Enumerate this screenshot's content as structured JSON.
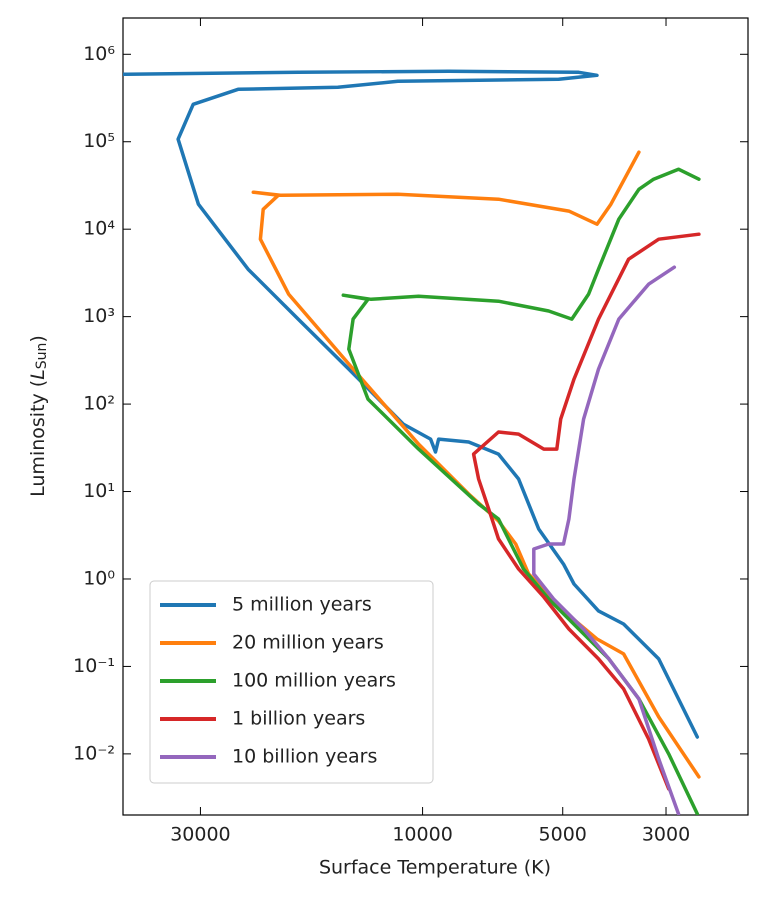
{
  "chart_data": {
    "type": "line",
    "xlabel": "Surface Temperature (K)",
    "ylabel": {
      "text": "Luminosity (",
      "symbol": "L",
      "subscript": "Sun",
      "close": ")"
    },
    "xscale": "log",
    "yscale": "log",
    "xlim": [
      44000,
      2000
    ],
    "ylim": [
      0.002,
      2600000
    ],
    "xticks": [
      30000,
      10000,
      5000,
      3000
    ],
    "yticks": [
      {
        "value": 0.01,
        "label": "10⁻²"
      },
      {
        "value": 0.1,
        "label": "10⁻¹"
      },
      {
        "value": 1,
        "label": "10⁰"
      },
      {
        "value": 10,
        "label": "10¹"
      },
      {
        "value": 100,
        "label": "10²"
      },
      {
        "value": 1000,
        "label": "10³"
      },
      {
        "value": 10000,
        "label": "10⁴"
      },
      {
        "value": 100000,
        "label": "10⁵"
      },
      {
        "value": 1000000,
        "label": "10⁶"
      }
    ],
    "legend": "lower left",
    "series": [
      {
        "name": "5 million years",
        "color": "#1f77b4",
        "x": [
          2570,
          3110,
          3700,
          4190,
          4730,
          4980,
          5630,
          6220,
          6870,
          7960,
          9240,
          9380,
          9610,
          11000,
          14400,
          18500,
          23700,
          30300,
          33500,
          31100,
          24900,
          15200,
          11300,
          5100,
          4220,
          4620,
          8790,
          18500,
          44000
        ],
        "values": [
          0.0156,
          0.122,
          0.306,
          0.431,
          0.877,
          1.48,
          3.73,
          13.9,
          26.8,
          36.8,
          39.8,
          28.3,
          39.8,
          59,
          251,
          936,
          3490,
          19300,
          107000,
          268000,
          398000,
          420000,
          491000,
          518000,
          575000,
          622000,
          640000,
          622000,
          590000
        ]
      },
      {
        "name": "20 million years",
        "color": "#ff7f0e",
        "x": [
          2550,
          3110,
          3700,
          4220,
          4980,
          5920,
          6310,
          6870,
          7960,
          10200,
          14400,
          19400,
          22300,
          22000,
          20400,
          23100,
          20200,
          11300,
          6870,
          4850,
          4220,
          3940,
          3430
        ],
        "values": [
          0.00546,
          0.0265,
          0.139,
          0.206,
          0.431,
          1.14,
          2.51,
          4.6,
          9.36,
          34.9,
          287,
          1810,
          7690,
          16900,
          24500,
          26500,
          24500,
          25100,
          22000,
          16100,
          11400,
          19300,
          75900
        ]
      },
      {
        "name": "100 million years",
        "color": "#2ca02c",
        "x": [
          2570,
          2960,
          3430,
          3980,
          4620,
          5360,
          6070,
          6870,
          7580,
          10200,
          13100,
          14400,
          14100,
          13100,
          14800,
          12900,
          10200,
          6870,
          5360,
          4780,
          4400,
          4190,
          3790,
          3430,
          3190,
          2820,
          2550
        ],
        "values": [
          0.00206,
          0.01,
          0.0425,
          0.122,
          0.268,
          0.59,
          1.3,
          4.85,
          7.2,
          30.6,
          114,
          425,
          936,
          1580,
          1760,
          1580,
          1710,
          1500,
          1160,
          936,
          1810,
          3490,
          13000,
          28600,
          37300,
          48500,
          37300
        ]
      },
      {
        "name": "1 billion years",
        "color": "#d62728",
        "x": [
          2960,
          3270,
          3700,
          4190,
          4850,
          5490,
          6220,
          6870,
          7210,
          7580,
          7770,
          6870,
          6220,
          5490,
          5150,
          5050,
          4730,
          4190,
          3610,
          3110,
          2550
        ],
        "values": [
          0.00398,
          0.0148,
          0.0553,
          0.122,
          0.268,
          0.623,
          1.3,
          2.87,
          6.31,
          13.9,
          26.8,
          47.9,
          45.4,
          30.6,
          30.6,
          67.4,
          193,
          936,
          4540,
          7690,
          8770
        ]
      },
      {
        "name": "10 billion years",
        "color": "#9467bd",
        "x": [
          2820,
          3110,
          3430,
          3980,
          4510,
          5230,
          5770,
          5770,
          5360,
          4980,
          4850,
          4730,
          4510,
          4190,
          3790,
          3270,
          2880
        ],
        "values": [
          0.00206,
          0.00877,
          0.0425,
          0.122,
          0.268,
          0.59,
          1.14,
          2.2,
          2.51,
          2.51,
          4.85,
          13.9,
          67.4,
          251,
          936,
          2350,
          3680
        ]
      }
    ]
  }
}
